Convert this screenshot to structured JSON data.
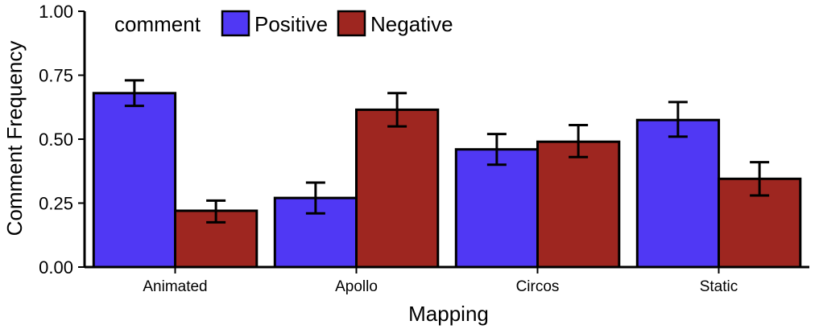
{
  "chart_data": {
    "type": "bar",
    "xlabel": "Mapping",
    "ylabel": "Comment Frequency",
    "ylim": [
      0,
      1
    ],
    "yticks": [
      "0.00",
      "0.25",
      "0.50",
      "0.75",
      "1.00"
    ],
    "yticks_values": [
      0,
      0.25,
      0.5,
      0.75,
      1.0
    ],
    "grid": false,
    "legend": {
      "title": "comment",
      "placement": "top-left",
      "orientation": "horizontal"
    },
    "categories": [
      "Animated",
      "Apollo",
      "Circos",
      "Static"
    ],
    "series": [
      {
        "name": "Positive",
        "color": "#5038f4",
        "values": [
          0.68,
          0.27,
          0.46,
          0.575
        ],
        "error_low": [
          0.63,
          0.21,
          0.4,
          0.51
        ],
        "error_high": [
          0.73,
          0.33,
          0.52,
          0.645
        ]
      },
      {
        "name": "Negative",
        "color": "#9e2620",
        "values": [
          0.22,
          0.615,
          0.49,
          0.345
        ],
        "error_low": [
          0.175,
          0.55,
          0.43,
          0.28
        ],
        "error_high": [
          0.26,
          0.68,
          0.555,
          0.41
        ]
      }
    ]
  }
}
